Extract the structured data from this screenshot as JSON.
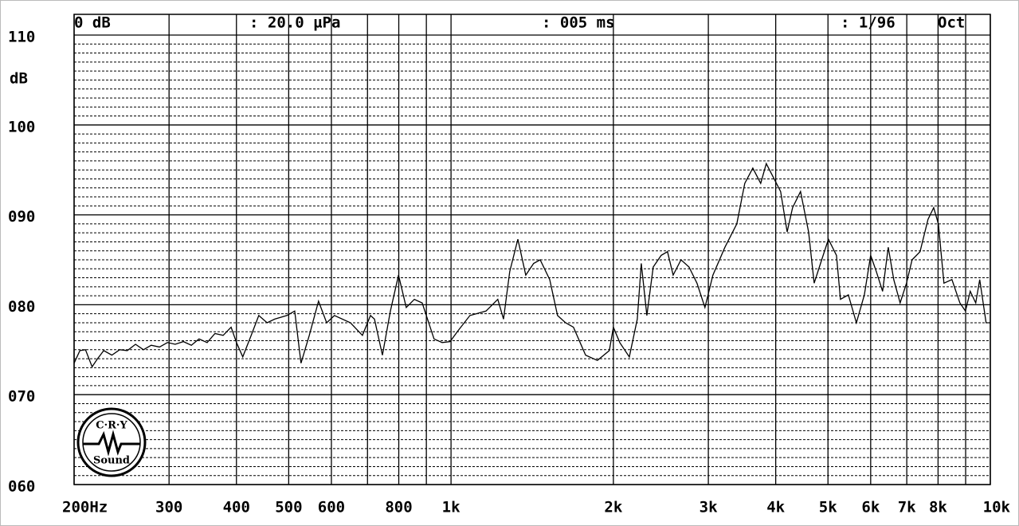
{
  "chart_data": {
    "type": "line",
    "header": [
      "0 dB",
      ": 20.0 µPa",
      ": 005 ms",
      ": 1/96",
      "Oct"
    ],
    "ylabel": "dB",
    "logo": {
      "top": "C·R·Y",
      "bottom": "Sound"
    },
    "xscale": "log",
    "xlim": [
      200,
      10000
    ],
    "ylim": [
      60,
      110
    ],
    "xticks": [
      {
        "value": 200,
        "label": "200Hz"
      },
      300,
      400,
      500,
      600,
      800,
      {
        "value": 1000,
        "label": "1k"
      },
      {
        "value": 2000,
        "label": "2k"
      },
      {
        "value": 3000,
        "label": "3k"
      },
      {
        "value": 4000,
        "label": "4k"
      },
      {
        "value": 5000,
        "label": "5k"
      },
      {
        "value": 6000,
        "label": "6k"
      },
      {
        "value": 7000,
        "label": "7k"
      },
      {
        "value": 8000,
        "label": "8k"
      },
      {
        "value": 10000,
        "label": "10k"
      }
    ],
    "xminor": [
      700,
      900,
      9000
    ],
    "yticks": [
      {
        "value": 60,
        "label": "060"
      },
      {
        "value": 70,
        "label": "070"
      },
      {
        "value": 80,
        "label": "080"
      },
      {
        "value": 90,
        "label": "090"
      },
      100,
      110
    ],
    "minor_grid_step": 1,
    "grid": true,
    "x": [
      200,
      205,
      210,
      216,
      221,
      227,
      235,
      243,
      251,
      260,
      269,
      278,
      288,
      298,
      308,
      319,
      330,
      341,
      353,
      365,
      378,
      391,
      400,
      411,
      426,
      440,
      456,
      471,
      496,
      513,
      527,
      546,
      568,
      588,
      608,
      651,
      685,
      709,
      721,
      746,
      772,
      799,
      826,
      855,
      884,
      930,
      963,
      996,
      1030,
      1084,
      1161,
      1221,
      1251,
      1285,
      1330,
      1376,
      1423,
      1463,
      1524,
      1576,
      1631,
      1687,
      1776,
      1868,
      1966,
      2000,
      2055,
      2141,
      2215,
      2253,
      2307,
      2371,
      2453,
      2520,
      2581,
      2670,
      2762,
      2858,
      2957,
      3059,
      3220,
      3388,
      3505,
      3627,
      3752,
      3842,
      3949,
      4085,
      4200,
      4299,
      4448,
      4602,
      4713,
      4843,
      5010,
      5184,
      5273,
      5455,
      5644,
      5840,
      6000,
      6145,
      6314,
      6467,
      6622,
      6805,
      6992,
      7160,
      7408,
      7664,
      7852,
      8012,
      8204,
      8488,
      8782,
      8994,
      9178,
      9398,
      9558,
      9822,
      10000
    ],
    "series": [
      {
        "color": "#000000",
        "values": [
          73.5,
          74.9,
          75.0,
          73.1,
          74.0,
          74.9,
          74.4,
          75.0,
          74.9,
          75.6,
          75.0,
          75.5,
          75.3,
          75.8,
          75.6,
          75.9,
          75.5,
          76.2,
          75.8,
          76.8,
          76.6,
          77.5,
          75.8,
          74.2,
          76.6,
          78.8,
          78.0,
          78.4,
          78.8,
          79.3,
          73.5,
          76.6,
          80.4,
          78.0,
          78.8,
          78.0,
          76.6,
          78.8,
          78.4,
          74.4,
          79.3,
          83.3,
          79.7,
          80.6,
          80.2,
          76.2,
          75.8,
          75.9,
          77.1,
          78.8,
          79.3,
          80.6,
          78.4,
          83.7,
          87.3,
          83.3,
          84.6,
          85.0,
          82.8,
          78.8,
          78.0,
          77.5,
          74.4,
          73.8,
          74.9,
          77.5,
          75.8,
          74.2,
          78.4,
          84.6,
          78.8,
          84.2,
          85.5,
          85.9,
          83.3,
          85.0,
          84.2,
          82.4,
          79.7,
          83.3,
          86.4,
          89.0,
          93.5,
          95.2,
          93.5,
          95.7,
          94.3,
          92.6,
          88.1,
          90.8,
          92.6,
          88.1,
          82.4,
          84.6,
          87.3,
          85.5,
          80.6,
          81.1,
          78.0,
          81.1,
          85.5,
          83.7,
          81.5,
          86.4,
          82.8,
          80.2,
          82.4,
          85.0,
          85.9,
          89.5,
          90.8,
          89.0,
          82.4,
          82.8,
          80.2,
          79.3,
          81.5,
          80.2,
          82.8,
          78.0,
          78.0
        ]
      }
    ]
  }
}
